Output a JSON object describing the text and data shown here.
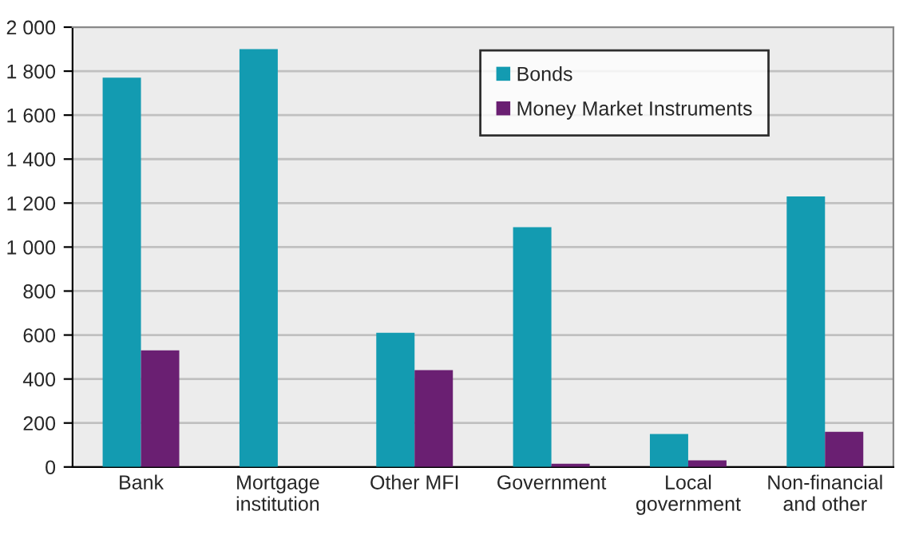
{
  "chart_data": {
    "type": "bar",
    "categories": [
      "Bank",
      "Mortgage\ninstitution",
      "Other MFI",
      "Government",
      "Local\ngovernment",
      "Non-financial\nand other"
    ],
    "series": [
      {
        "name": "Bonds",
        "color": "#139bb1",
        "values": [
          1770,
          1900,
          610,
          1090,
          150,
          1230
        ]
      },
      {
        "name": "Money Market Instruments",
        "color": "#6a1f72",
        "values": [
          530,
          null,
          440,
          15,
          30,
          160
        ]
      }
    ],
    "ylim": [
      0,
      2000
    ],
    "yticks": [
      {
        "value": 0,
        "label": "0"
      },
      {
        "value": 200,
        "label": "200"
      },
      {
        "value": 400,
        "label": "400"
      },
      {
        "value": 600,
        "label": "600"
      },
      {
        "value": 800,
        "label": "800"
      },
      {
        "value": 1000,
        "label": "1 000"
      },
      {
        "value": 1200,
        "label": "1 200"
      },
      {
        "value": 1400,
        "label": "1 400"
      },
      {
        "value": 1600,
        "label": "1 600"
      },
      {
        "value": 1800,
        "label": "1 800"
      },
      {
        "value": 2000,
        "label": "2 000"
      }
    ],
    "grid": "y",
    "legend": "top right"
  }
}
